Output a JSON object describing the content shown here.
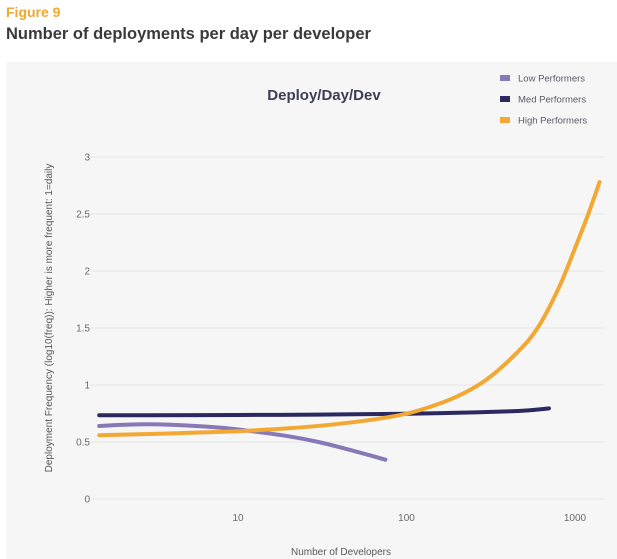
{
  "figure": {
    "label": "Figure 9",
    "title": "Number of deployments per day per developer"
  },
  "colors": {
    "figure_label": "#f0a830",
    "panel_background": "#f6f6f6",
    "low": "#8878b8",
    "med": "#2c2860",
    "high": "#f2a833"
  },
  "chart_data": {
    "type": "line",
    "title": "Deploy/Day/Dev",
    "xlabel": "Number of Developers",
    "ylabel": "Deployment Frequency  (log10(freq)): Higher is more frequent: 1=daily",
    "x_scale": "log",
    "xlim": [
      1.3,
      1500
    ],
    "ylim": [
      0,
      3
    ],
    "x_ticks": [
      10,
      100,
      1000
    ],
    "x_tick_labels": [
      "10",
      "100",
      "1000"
    ],
    "y_ticks": [
      0,
      0.5,
      1,
      1.5,
      2,
      2.5,
      3
    ],
    "y_tick_labels": [
      "0",
      "0.5",
      "1",
      "1.5",
      "2",
      "2.5",
      "3"
    ],
    "grid": true,
    "legend_position": "top-right",
    "series": [
      {
        "name": "Low Performers",
        "color": "#8878b8",
        "x": [
          1.5,
          2,
          3,
          5,
          8,
          12,
          20,
          30,
          45,
          60,
          75
        ],
        "y": [
          0.64,
          0.65,
          0.655,
          0.645,
          0.625,
          0.595,
          0.55,
          0.5,
          0.435,
          0.385,
          0.345
        ]
      },
      {
        "name": "Med Performers",
        "color": "#2c2860",
        "x": [
          1.5,
          3,
          10,
          30,
          100,
          200,
          400,
          550,
          700
        ],
        "y": [
          0.735,
          0.735,
          0.737,
          0.74,
          0.748,
          0.756,
          0.768,
          0.78,
          0.795
        ]
      },
      {
        "name": "High Performers",
        "color": "#f2a833",
        "x": [
          1.5,
          3,
          5,
          10,
          20,
          40,
          80,
          120,
          200,
          300,
          450,
          600,
          800,
          1000,
          1200,
          1400
        ],
        "y": [
          0.56,
          0.57,
          0.58,
          0.595,
          0.62,
          0.66,
          0.72,
          0.78,
          0.9,
          1.05,
          1.28,
          1.5,
          1.85,
          2.2,
          2.5,
          2.78
        ]
      }
    ]
  }
}
